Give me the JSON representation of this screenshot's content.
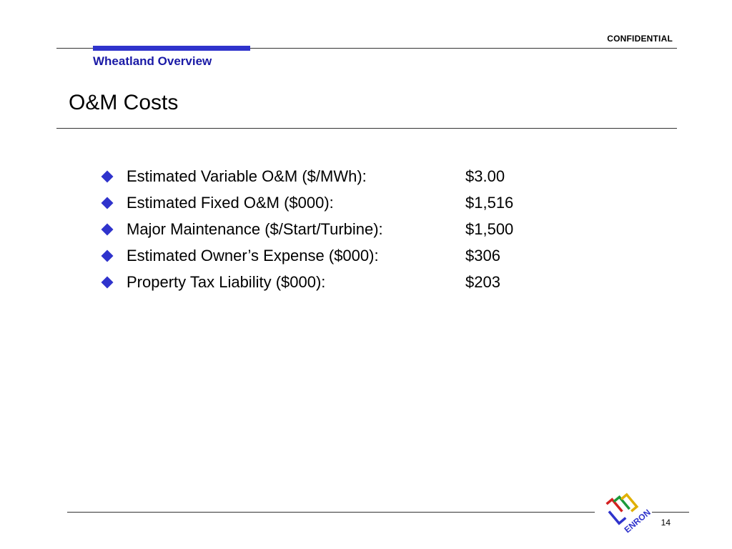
{
  "header": {
    "confidential_label": "CONFIDENTIAL",
    "section_title": "Wheatland Overview",
    "page_title": "O&M Costs",
    "accent_color": "#2f33cc",
    "section_title_color": "#1a1aa6"
  },
  "bullets": [
    {
      "label": "Estimated Variable O&M ($/MWh):",
      "value": "$3.00",
      "icon": "diamond-bullet-icon"
    },
    {
      "label": "Estimated Fixed O&M ($000):",
      "value": "$1,516",
      "icon": "diamond-bullet-icon"
    },
    {
      "label": "Major Maintenance ($/Start/Turbine):",
      "value": "$1,500",
      "icon": "diamond-bullet-icon"
    },
    {
      "label": "Estimated Owner’s Expense ($000):",
      "value": "$306",
      "icon": "diamond-bullet-icon"
    },
    {
      "label": "Property Tax Liability ($000):",
      "value": "$203",
      "icon": "diamond-bullet-icon"
    }
  ],
  "footer": {
    "logo_text": "ENRON",
    "page_number": "14"
  }
}
